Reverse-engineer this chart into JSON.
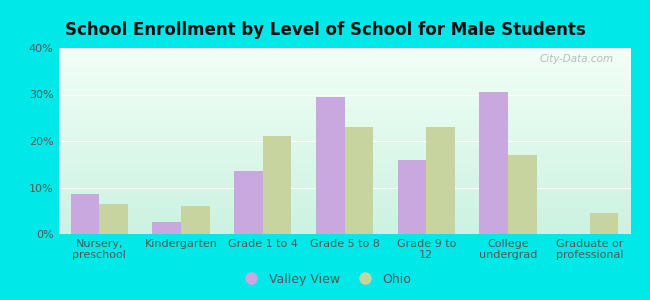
{
  "title": "School Enrollment by Level of School for Male Students",
  "categories": [
    "Nursery,\npreschool",
    "Kindergarten",
    "Grade 1 to 4",
    "Grade 5 to 8",
    "Grade 9 to\n12",
    "College\nundergrad",
    "Graduate or\nprofessional"
  ],
  "valley_view": [
    8.5,
    2.5,
    13.5,
    29.5,
    16.0,
    30.5,
    0
  ],
  "ohio": [
    6.5,
    6.0,
    21.0,
    23.0,
    23.0,
    17.0,
    4.5
  ],
  "valley_view_color": "#c9a8e0",
  "ohio_color": "#c8d4a0",
  "background_outer": "#00e8e8",
  "ylim": [
    0,
    40
  ],
  "yticks": [
    0,
    10,
    20,
    30,
    40
  ],
  "legend_labels": [
    "Valley View",
    "Ohio"
  ],
  "bar_width": 0.35,
  "title_fontsize": 12,
  "tick_fontsize": 8,
  "watermark": "City-Data.com"
}
